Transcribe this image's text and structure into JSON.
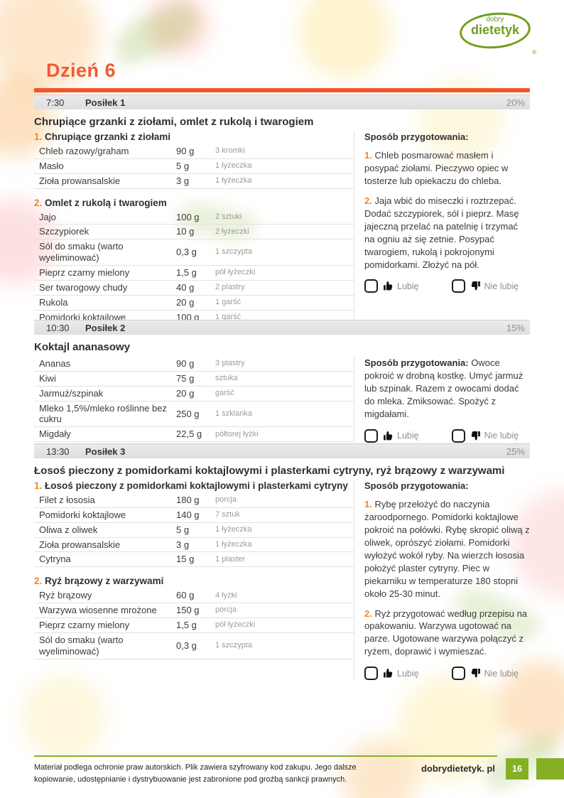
{
  "page": {
    "day_title": "Dzień 6"
  },
  "logo": {
    "top": "dobry",
    "bottom": "dietetyk",
    "reg": "®"
  },
  "labels": {
    "like": "Lubię",
    "dislike": "Nie lubię"
  },
  "icons": {
    "like": "thumbs-up-icon",
    "dislike": "thumbs-down-icon"
  },
  "colors": {
    "accent_orange": "#f1562b",
    "number_orange": "#f6861f",
    "brand_green": "#85b024",
    "logo_green": "#6f9e1e",
    "header_bar_gray": "#e4e4e4",
    "muted_text": "#9b9b9b"
  },
  "meals": [
    {
      "time": "7:30",
      "name": "Posiłek 1",
      "percent": "20%",
      "title": "Chrupiące grzanki z ziołami, omlet z rukolą i twarogiem",
      "recipes": [
        {
          "num": "1.",
          "title": "Chrupiące grzanki z ziołami",
          "ingredients": [
            {
              "name": "Chleb razowy/graham",
              "amount": "90 g",
              "measure": "3 kromki"
            },
            {
              "name": "Masło",
              "amount": "5 g",
              "measure": "1 łyżeczka"
            },
            {
              "name": "Zioła prowansalskie",
              "amount": "3 g",
              "measure": "1 łyżeczka"
            }
          ]
        },
        {
          "num": "2.",
          "title": "Omlet z rukolą i twarogiem",
          "ingredients": [
            {
              "name": "Jajo",
              "amount": "100 g",
              "measure": "2 sztuki"
            },
            {
              "name": "Szczypiorek",
              "amount": "10 g",
              "measure": "2 łyżeczki"
            },
            {
              "name": "Sól do smaku (warto wyeliminować)",
              "amount": "0,3 g",
              "measure": "1 szczypta"
            },
            {
              "name": "Pieprz czarny mielony",
              "amount": "1,5 g",
              "measure": "pół łyżeczki"
            },
            {
              "name": "Ser twarogowy chudy",
              "amount": "40 g",
              "measure": "2 plastry"
            },
            {
              "name": "Rukola",
              "amount": "20 g",
              "measure": "1 garść"
            },
            {
              "name": "Pomidorki koktajlowe",
              "amount": "100 g",
              "measure": "1 garść"
            }
          ]
        }
      ],
      "prep": {
        "label": "Sposób przygotowania:",
        "inline": false,
        "steps": [
          {
            "num": "1.",
            "text": "Chleb posmarować masłem i posypać ziołami. Pieczywo opiec w tosterze lub opiekaczu do chleba."
          },
          {
            "num": "2.",
            "text": "Jaja wbić do miseczki i roztrzepać. Dodać szczypiorek, sól i pieprz. Masę jajeczną przelać na patelnię i trzymać na ogniu aż się zetnie. Posypać twarogiem, rukolą i pokrojonymi pomidorkami. Złożyć na pół."
          }
        ]
      }
    },
    {
      "time": "10:30",
      "name": "Posiłek 2",
      "percent": "15%",
      "title": "Koktajl ananasowy",
      "recipes": [
        {
          "num": "",
          "title": "",
          "ingredients": [
            {
              "name": "Ananas",
              "amount": "90 g",
              "measure": "3 plastry"
            },
            {
              "name": "Kiwi",
              "amount": "75 g",
              "measure": "sztuka"
            },
            {
              "name": "Jarmuż/szpinak",
              "amount": "20 g",
              "measure": "garść"
            },
            {
              "name": "Mleko 1,5%/mleko roślinne bez cukru",
              "amount": "250 g",
              "measure": "1 szklanka"
            },
            {
              "name": "Migdały",
              "amount": "22,5 g",
              "measure": "półtorej łyżki"
            }
          ]
        }
      ],
      "prep": {
        "label": "Sposób przygotowania:",
        "inline": true,
        "steps": [
          {
            "num": "",
            "text": "Owoce pokroić w drobną kostkę. Umyć jarmuż lub szpinak. Razem z owocami dodać do mleka. Zmiksować. Spożyć z migdałami."
          }
        ]
      }
    },
    {
      "time": "13:30",
      "name": "Posiłek 3",
      "percent": "25%",
      "title": "Łosoś pieczony z pomidorkami koktajlowymi i plasterkami cytryny, ryż brązowy z warzywami",
      "recipes": [
        {
          "num": "1.",
          "title": "Łosoś pieczony z pomidorkami koktajlowymi i plasterkami cytryny",
          "ingredients": [
            {
              "name": "Filet z łososia",
              "amount": "180 g",
              "measure": "porcja"
            },
            {
              "name": "Pomidorki koktajlowe",
              "amount": "140 g",
              "measure": "7 sztuk"
            },
            {
              "name": "Oliwa z oliwek",
              "amount": "5 g",
              "measure": "1 łyżeczka"
            },
            {
              "name": "Zioła prowansalskie",
              "amount": "3 g",
              "measure": "1 łyżeczka"
            },
            {
              "name": "Cytryna",
              "amount": "15 g",
              "measure": "1 plaster"
            }
          ]
        },
        {
          "num": "2.",
          "title": "Ryż brązowy z warzywami",
          "ingredients": [
            {
              "name": "Ryż brązowy",
              "amount": "60 g",
              "measure": "4 łyżki"
            },
            {
              "name": "Warzywa wiosenne mrożone",
              "amount": "150 g",
              "measure": "porcja"
            },
            {
              "name": "Pieprz czarny mielony",
              "amount": "1,5 g",
              "measure": "pół łyżeczki"
            },
            {
              "name": "Sól do smaku (warto wyeliminować)",
              "amount": "0,3 g",
              "measure": "1 szczypta"
            }
          ]
        }
      ],
      "prep": {
        "label": "Sposób przygotowania:",
        "inline": false,
        "steps": [
          {
            "num": "1.",
            "text": "Rybę przełożyć do naczynia żaroodpornego. Pomidorki koktajlowe pokroić na połówki. Rybę skropić oliwą z oliwek, oprószyć ziołami. Pomidorki wyłożyć wokół ryby. Na wierzch łososia położyć plaster cytryny. Piec w piekarniku w temperaturze 180 stopni około 25-30 minut."
          },
          {
            "num": "2.",
            "text": "Ryż przygotować według przepisu na opakowaniu. Warzywa ugotować na parze. Ugotowane warzywa połączyć z ryżem, doprawić i wymieszać."
          }
        ]
      }
    }
  ],
  "footer": {
    "text": "Materiał podlega ochronie praw autorskich. Plik zawiera szyfrowany kod zakupu. Jego dalsze kopiowanie, udostępnianie i dystrybuowanie jest zabronione pod groźbą sankcji prawnych.",
    "site": "dobrydietetyk. pl",
    "page_number": "16"
  }
}
